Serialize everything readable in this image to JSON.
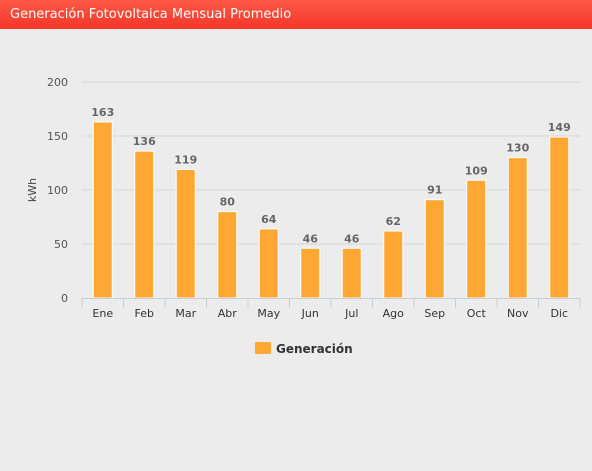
{
  "header": {
    "title": "Generación Fotovoltaica Mensual Promedio"
  },
  "chart_data": {
    "type": "bar",
    "title": "",
    "xlabel": "",
    "ylabel": "kWh",
    "ylim": [
      0,
      200
    ],
    "yticks": [
      0,
      50,
      100,
      150,
      200
    ],
    "grid": true,
    "legend": "bottom-center",
    "bar_color": "#ffa733",
    "categories": [
      "Ene",
      "Feb",
      "Mar",
      "Abr",
      "May",
      "Jun",
      "Jul",
      "Ago",
      "Sep",
      "Oct",
      "Nov",
      "Dic"
    ],
    "series": [
      {
        "name": "Generación",
        "values": [
          163,
          136,
          119,
          80,
          64,
          46,
          46,
          62,
          91,
          109,
          130,
          149
        ]
      }
    ]
  }
}
